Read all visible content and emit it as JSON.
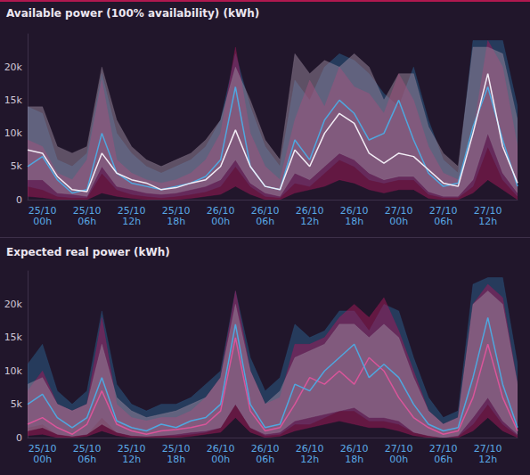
{
  "chart_data": [
    {
      "type": "line",
      "title": "Available power (100% availability) (kWh)",
      "x": [
        null,
        "25/10\n00h",
        null,
        null,
        "25/10\n06h",
        null,
        null,
        "25/10\n12h",
        null,
        null,
        "25/10\n18h",
        null,
        null,
        "26/10\n00h",
        null,
        null,
        "26/10\n06h",
        null,
        null,
        "26/10\n12h",
        null,
        null,
        "26/10\n18h",
        null,
        null,
        "27/10\n00h",
        null,
        null,
        "27/10\n06h",
        null,
        null,
        "27/10\n12h",
        null,
        null
      ],
      "ylim": [
        0,
        25000
      ],
      "yticks": [
        0,
        {
          "value": 5000,
          "label": "5k"
        },
        {
          "value": 10000,
          "label": "10k"
        },
        {
          "value": 15000,
          "label": "15k"
        },
        {
          "value": 20000,
          "label": "20k"
        }
      ],
      "grid": false,
      "series": [
        {
          "type": "band",
          "color": "#2b5f8e",
          "upper": [
            14000,
            13000,
            6000,
            5000,
            7000,
            19000,
            10000,
            7000,
            5000,
            4000,
            5000,
            6000,
            8000,
            12000,
            22000,
            14000,
            8000,
            5000,
            18000,
            15000,
            20000,
            22000,
            21000,
            19000,
            16000,
            14000,
            20000,
            12000,
            6000,
            4000,
            24000,
            24000,
            24000,
            14000
          ],
          "lower": [
            2000,
            1500,
            500,
            300,
            300,
            4000,
            1500,
            800,
            500,
            300,
            500,
            800,
            1200,
            2000,
            5000,
            2000,
            500,
            300,
            2500,
            2000,
            4000,
            6000,
            5000,
            3000,
            2500,
            3000,
            3000,
            800,
            300,
            300,
            2000,
            8000,
            3000,
            500
          ]
        },
        {
          "type": "band",
          "color": "#a5195a",
          "upper": [
            9000,
            8000,
            4000,
            3000,
            6000,
            18000,
            6000,
            4000,
            3000,
            2500,
            3000,
            4000,
            6000,
            10000,
            23000,
            10000,
            5000,
            3000,
            12000,
            18000,
            14000,
            20000,
            17000,
            16000,
            13000,
            19000,
            15000,
            8000,
            4000,
            3000,
            10000,
            24000,
            20000,
            8000
          ],
          "lower": [
            500,
            300,
            0,
            0,
            0,
            1000,
            500,
            200,
            0,
            0,
            0,
            200,
            500,
            800,
            2000,
            800,
            0,
            0,
            1000,
            1500,
            2000,
            3000,
            2500,
            1500,
            1000,
            1500,
            1500,
            200,
            0,
            0,
            1000,
            3000,
            1500,
            0
          ]
        },
        {
          "type": "band",
          "color": "#9c8aa0",
          "upper": [
            14000,
            14000,
            8000,
            7000,
            8000,
            20000,
            12000,
            8000,
            6000,
            5000,
            6000,
            7000,
            9000,
            12000,
            20000,
            15000,
            9000,
            6000,
            22000,
            19000,
            21000,
            20000,
            22000,
            20000,
            15000,
            19000,
            19000,
            11000,
            7000,
            5000,
            23000,
            23000,
            22000,
            12000
          ],
          "lower": [
            3000,
            3000,
            1000,
            800,
            500,
            5000,
            2000,
            1500,
            1000,
            800,
            1000,
            1500,
            2000,
            3000,
            6000,
            2500,
            1000,
            500,
            4000,
            3000,
            5000,
            7000,
            6000,
            4000,
            3000,
            3500,
            3500,
            1200,
            500,
            500,
            3000,
            10000,
            4000,
            1000
          ]
        },
        {
          "type": "line",
          "color": "#4fa7df",
          "values": [
            5000,
            6500,
            3000,
            1000,
            1500,
            10000,
            4000,
            2500,
            2000,
            1500,
            2000,
            2500,
            3500,
            6000,
            17000,
            5000,
            2000,
            1500,
            9000,
            6000,
            12000,
            15000,
            13000,
            9000,
            10000,
            15000,
            9000,
            4000,
            2000,
            2500,
            11000,
            17000,
            9000,
            2000
          ]
        },
        {
          "type": "line",
          "color": "#f2ecf5",
          "values": [
            7500,
            7000,
            3500,
            1500,
            1200,
            7000,
            4000,
            3000,
            2500,
            1500,
            1800,
            2500,
            3000,
            5000,
            10500,
            5000,
            2000,
            1500,
            7500,
            5000,
            10000,
            13000,
            11500,
            7000,
            5500,
            7000,
            6500,
            4500,
            2500,
            2000,
            10000,
            19000,
            8000,
            2500
          ]
        }
      ]
    },
    {
      "type": "line",
      "title": "Expected real power (kWh)",
      "x": [
        null,
        "25/10\n00h",
        null,
        null,
        "25/10\n06h",
        null,
        null,
        "25/10\n12h",
        null,
        null,
        "25/10\n18h",
        null,
        null,
        "26/10\n00h",
        null,
        null,
        "26/10\n06h",
        null,
        null,
        "26/10\n12h",
        null,
        null,
        "26/10\n18h",
        null,
        null,
        "27/10\n00h",
        null,
        null,
        "27/10\n06h",
        null,
        null,
        "27/10\n12h",
        null,
        null
      ],
      "ylim": [
        0,
        25000
      ],
      "yticks": [
        0,
        {
          "value": 5000,
          "label": "5k"
        },
        {
          "value": 10000,
          "label": "10k"
        },
        {
          "value": 15000,
          "label": "15k"
        },
        {
          "value": 20000,
          "label": "20k"
        }
      ],
      "grid": false,
      "series": [
        {
          "type": "band",
          "color": "#2b5f8e",
          "upper": [
            11000,
            14000,
            7000,
            5000,
            7000,
            19000,
            8000,
            5000,
            4000,
            5000,
            5000,
            6000,
            8000,
            10000,
            22000,
            12000,
            7000,
            9000,
            17000,
            15000,
            16000,
            19000,
            19000,
            16000,
            20000,
            19000,
            12000,
            6000,
            3000,
            4000,
            23000,
            24000,
            24000,
            11000
          ],
          "lower": [
            1500,
            2000,
            500,
            200,
            500,
            3000,
            800,
            300,
            200,
            300,
            300,
            500,
            800,
            1500,
            5000,
            1500,
            300,
            500,
            2000,
            2000,
            3000,
            4000,
            4000,
            2500,
            2500,
            2000,
            800,
            300,
            0,
            200,
            2000,
            5000,
            2000,
            300
          ]
        },
        {
          "type": "band",
          "color": "#a5195a",
          "upper": [
            7000,
            10000,
            5000,
            4000,
            5000,
            18000,
            5000,
            3000,
            2500,
            3000,
            3000,
            4000,
            6000,
            9000,
            22000,
            10000,
            5000,
            6000,
            14000,
            14000,
            15000,
            18000,
            20000,
            18000,
            21000,
            16000,
            10000,
            4000,
            2000,
            3000,
            20000,
            23000,
            21000,
            8000
          ],
          "lower": [
            300,
            500,
            0,
            0,
            200,
            1000,
            300,
            0,
            0,
            0,
            0,
            200,
            500,
            800,
            3000,
            800,
            0,
            200,
            1000,
            1500,
            2000,
            2500,
            2000,
            1500,
            1500,
            1000,
            300,
            0,
            0,
            0,
            1000,
            3000,
            1000,
            0
          ]
        },
        {
          "type": "band",
          "color": "#9c8aa0",
          "upper": [
            8000,
            9000,
            5000,
            4000,
            5000,
            14000,
            6000,
            4000,
            3000,
            3500,
            4000,
            5000,
            6000,
            9000,
            20000,
            10000,
            5000,
            7000,
            12000,
            13000,
            14000,
            17000,
            17000,
            15000,
            17000,
            15000,
            9000,
            4000,
            2000,
            3000,
            20000,
            22000,
            20000,
            8000
          ],
          "lower": [
            1000,
            1500,
            500,
            200,
            500,
            2000,
            800,
            300,
            200,
            300,
            500,
            800,
            1000,
            1500,
            5000,
            1500,
            500,
            800,
            2500,
            3000,
            3500,
            4000,
            4500,
            3000,
            3000,
            2500,
            800,
            300,
            0,
            300,
            3000,
            6000,
            2500,
            500
          ]
        },
        {
          "type": "line",
          "color": "#d9559a",
          "values": [
            2000,
            3000,
            1500,
            500,
            2000,
            7000,
            2000,
            1000,
            500,
            1000,
            1200,
            1500,
            2000,
            4000,
            15000,
            4000,
            1000,
            1500,
            5000,
            9000,
            8000,
            10000,
            8000,
            12000,
            10000,
            6000,
            3000,
            1500,
            500,
            1000,
            6000,
            14000,
            6000,
            1000
          ]
        },
        {
          "type": "line",
          "color": "#4fa7df",
          "values": [
            5000,
            6500,
            3000,
            1500,
            3000,
            9000,
            2500,
            1500,
            1000,
            2000,
            1500,
            2500,
            3000,
            5000,
            17000,
            5000,
            1500,
            2000,
            8000,
            7000,
            10000,
            12000,
            14000,
            9000,
            11000,
            9000,
            5000,
            2000,
            1000,
            1500,
            9000,
            18000,
            8000,
            1500
          ]
        }
      ]
    }
  ]
}
